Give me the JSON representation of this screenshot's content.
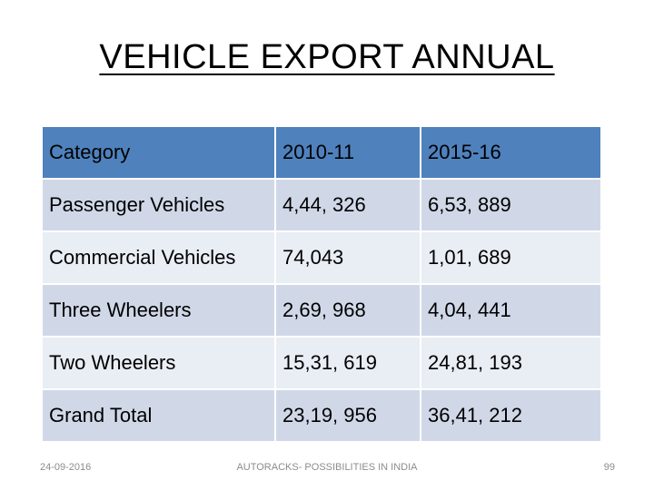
{
  "slide": {
    "title": "VEHICLE EXPORT ANNUAL"
  },
  "table": {
    "headers": [
      "Category",
      "2010-11",
      "2015-16"
    ],
    "rows": [
      [
        "Passenger Vehicles",
        "4,44, 326",
        "6,53, 889"
      ],
      [
        "Commercial Vehicles",
        "74,043",
        "1,01, 689"
      ],
      [
        "Three Wheelers",
        "2,69, 968",
        "4,04, 441"
      ],
      [
        "Two Wheelers",
        "15,31, 619",
        "24,81, 193"
      ],
      [
        "Grand Total",
        "23,19, 956",
        "36,41, 212"
      ]
    ]
  },
  "footer": {
    "date": "24-09-2016",
    "center": "AUTORACKS- POSSIBILITIES IN INDIA",
    "page_number": "99"
  },
  "colors": {
    "header_bg": "#4f81bd",
    "row_odd_bg": "#d0d8e8",
    "row_even_bg": "#e9edf4"
  }
}
